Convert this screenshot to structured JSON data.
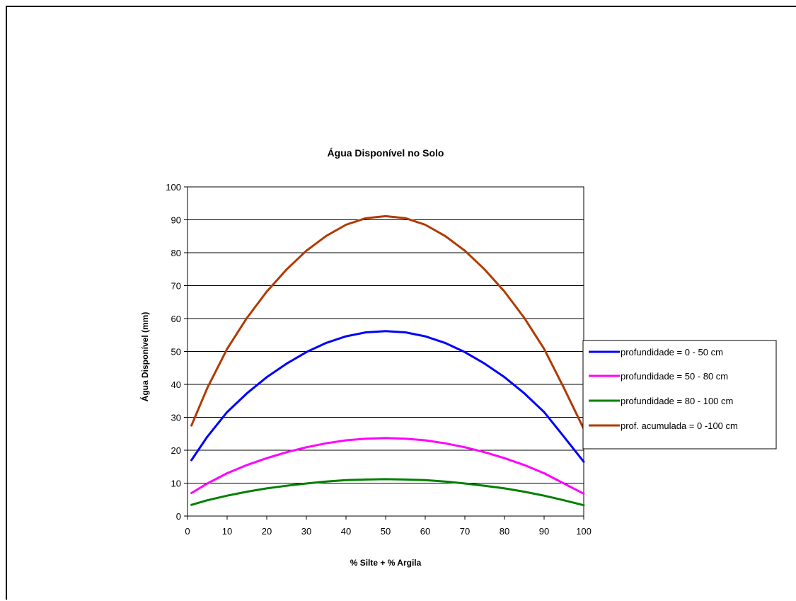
{
  "chart_data": {
    "type": "line",
    "title": "Água Disponível no Solo",
    "xlabel": "% Silte + % Argila",
    "ylabel": "Água  Disponível (mm)",
    "xlim": [
      0,
      100
    ],
    "ylim": [
      0,
      100
    ],
    "xticks": [
      0,
      10,
      20,
      30,
      40,
      50,
      60,
      70,
      80,
      90,
      100
    ],
    "yticks": [
      0,
      10,
      20,
      30,
      40,
      50,
      60,
      70,
      80,
      90,
      100
    ],
    "grid": "horizontal",
    "legend_position": "right",
    "x": [
      1,
      5,
      10,
      15,
      20,
      25,
      30,
      35,
      40,
      45,
      50,
      55,
      60,
      65,
      70,
      75,
      80,
      85,
      90,
      95,
      100
    ],
    "series": [
      {
        "name": "profundidade = 0 - 50 cm",
        "color": "#0000ff",
        "values": [
          17.0,
          24.1,
          31.6,
          37.3,
          42.2,
          46.3,
          49.8,
          52.6,
          54.6,
          55.8,
          56.2,
          55.8,
          54.6,
          52.6,
          49.8,
          46.3,
          42.2,
          37.3,
          31.6,
          24.1,
          16.5
        ]
      },
      {
        "name": "profundidade = 50 - 80 cm",
        "color": "#ff00ff",
        "values": [
          7.0,
          9.9,
          13.0,
          15.5,
          17.6,
          19.4,
          20.9,
          22.1,
          23.0,
          23.5,
          23.7,
          23.5,
          23.0,
          22.1,
          20.9,
          19.4,
          17.6,
          15.5,
          13.0,
          9.9,
          6.8
        ]
      },
      {
        "name": "profundidade = 80 - 100 cm",
        "color": "#008000",
        "values": [
          3.4,
          4.8,
          6.2,
          7.4,
          8.4,
          9.2,
          9.9,
          10.5,
          10.9,
          11.1,
          11.2,
          11.1,
          10.9,
          10.5,
          9.9,
          9.2,
          8.4,
          7.4,
          6.2,
          4.8,
          3.3
        ]
      },
      {
        "name": "prof. acumulada = 0 -100 cm",
        "color": "#b03a00",
        "values": [
          27.5,
          38.9,
          50.8,
          60.2,
          68.2,
          74.9,
          80.6,
          85.1,
          88.5,
          90.5,
          91.1,
          90.5,
          88.5,
          85.1,
          80.6,
          74.9,
          68.2,
          60.2,
          50.8,
          38.9,
          26.5
        ]
      }
    ]
  }
}
